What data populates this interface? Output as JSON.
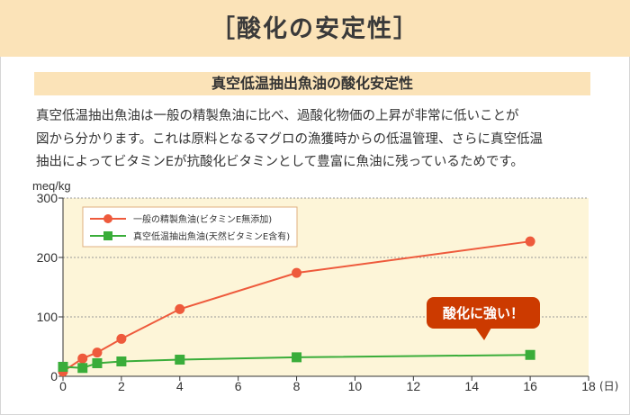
{
  "header": {
    "title": "［酸化の安定性］"
  },
  "section": {
    "subtitle": "真空低温抽出魚油の酸化安定性"
  },
  "description": {
    "lines": [
      "真空低温抽出魚油は一般の精製魚油に比べ、過酸化物価の上昇が非常に低いことが",
      "図から分かります。これは原料となるマグロの漁獲時からの低温管理、さらに真空低温",
      "抽出によってビタミンEが抗酸化ビタミンとして豊富に魚油に残っているためです。"
    ]
  },
  "chart_data": {
    "type": "line",
    "ylabel": "meq/kg",
    "xlabel": "(日)",
    "xlim": [
      0,
      18
    ],
    "ylim": [
      0,
      300
    ],
    "x_ticks": [
      0,
      2,
      4,
      6,
      8,
      10,
      12,
      14,
      16,
      18
    ],
    "y_ticks": [
      0,
      100,
      200,
      300
    ],
    "grid": "horizontal-dotted",
    "legend_position": "top-left",
    "series": [
      {
        "name": "一般の精製魚油(ビタミンE無添加)",
        "color": "#ee5a3c",
        "marker": "circle",
        "x": [
          0,
          0.67,
          1.17,
          2,
          4,
          8,
          16
        ],
        "y": [
          8,
          30,
          40,
          63,
          113,
          174,
          227
        ]
      },
      {
        "name": "真空低温抽出魚油(天然ビタミンE含有)",
        "color": "#3aad3a",
        "marker": "square",
        "x": [
          0,
          0.67,
          1.17,
          2,
          4,
          8,
          16
        ],
        "y": [
          16,
          14,
          22,
          25,
          28,
          32,
          36
        ]
      }
    ],
    "annotation": {
      "text": "酸化に強い！",
      "color": "#cc3a00"
    }
  }
}
